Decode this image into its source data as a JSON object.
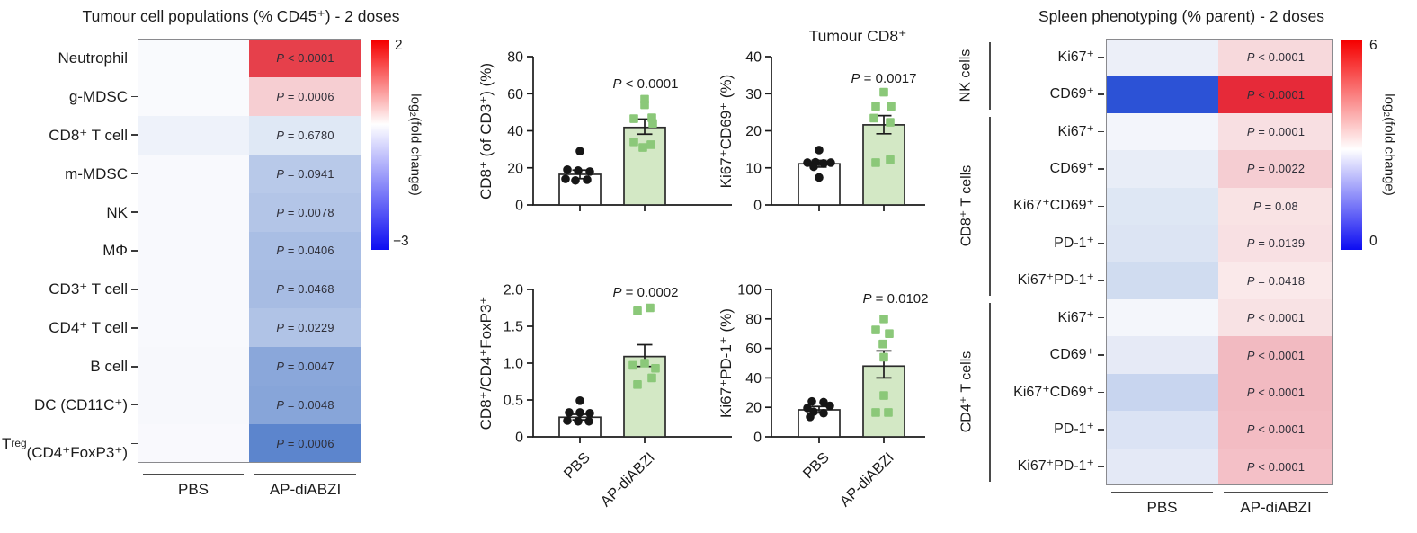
{
  "colors": {
    "bar_pbs_fill": "#ffffff",
    "bar_ap_fill": "#d3e8c5",
    "point_pbs": "#161616",
    "point_ap": "#8bc879",
    "axis": "#1a1a1a",
    "colorbar_red": "#f50000",
    "colorbar_blue": "#0d0df2"
  },
  "chart_data": [
    {
      "type": "heatmap",
      "id": "tumour",
      "title": "Tumour cell populations (% CD45⁺) - 2 doses",
      "columns": [
        "PBS",
        "AP-diABZI"
      ],
      "colorbar": {
        "top": "2",
        "bottom": "−3",
        "label": "log₂(fold change)"
      },
      "rows": [
        {
          "label": "Neutrophil",
          "p": "P < 0.0001",
          "pbs": "#f9fafd",
          "ap": "#e6404b"
        },
        {
          "label": "g-MDSC",
          "p": "P = 0.0006",
          "pbs": "#f9fafd",
          "ap": "#f6ced2"
        },
        {
          "label": "CD8⁺ T cell",
          "p": "P = 0.6780",
          "pbs": "#eef2fa",
          "ap": "#dfe8f5"
        },
        {
          "label": "m-MDSC",
          "p": "P = 0.0941",
          "pbs": "#f8f9fd",
          "ap": "#b8c9e9"
        },
        {
          "label": "NK",
          "p": "P = 0.0078",
          "pbs": "#f8f9fd",
          "ap": "#b3c5e7"
        },
        {
          "label": "MΦ",
          "p": "P = 0.0406",
          "pbs": "#f8f9fd",
          "ap": "#a9bee4"
        },
        {
          "label": "CD3⁺ T cell",
          "p": "P = 0.0468",
          "pbs": "#f8f9fd",
          "ap": "#a7bce3"
        },
        {
          "label": "CD4⁺ T cell",
          "p": "P = 0.0229",
          "pbs": "#f8f9fd",
          "ap": "#b0c3e6"
        },
        {
          "label": "B cell",
          "p": "P = 0.0047",
          "pbs": "#f7f8fc",
          "ap": "#8aa7da"
        },
        {
          "label": "DC (CD11C⁺)",
          "p": "P = 0.0048",
          "pbs": "#f7f8fc",
          "ap": "#87a5d9"
        },
        {
          "label": "T{sub:reg}\n(CD4⁺FoxP3⁺)",
          "p": "P = 0.0006",
          "pbs": "#f9f9fd",
          "ap": "#5c85cd"
        }
      ]
    },
    {
      "type": "bar",
      "ylabel": "CD8⁺ (of CD3⁺) (%)",
      "title": "",
      "p_label": "P < 0.0001",
      "ylim": [
        0,
        80
      ],
      "yticks": [
        [
          0,
          "0"
        ],
        [
          20,
          "20"
        ],
        [
          40,
          "40"
        ],
        [
          60,
          "60"
        ],
        [
          80,
          "80"
        ]
      ],
      "categories": [
        "PBS",
        "AP-diABZI"
      ],
      "show_x_labels": false,
      "series": [
        {
          "name": "PBS",
          "mean": 16.5,
          "sem": [
            14.2,
            18.8
          ],
          "points": [
            [
              0,
              29
            ],
            [
              -14,
              19
            ],
            [
              -2,
              18.5
            ],
            [
              11,
              18
            ],
            [
              -16,
              14
            ],
            [
              -5,
              13.2
            ],
            [
              8,
              13.6
            ]
          ]
        },
        {
          "name": "AP-diABZI",
          "mean": 41.8,
          "sem": [
            38.2,
            46.3
          ],
          "points": [
            [
              0,
              57
            ],
            [
              0,
              54
            ],
            [
              -12,
              46.5
            ],
            [
              8,
              47
            ],
            [
              9,
              44
            ],
            [
              -12,
              34
            ],
            [
              -2,
              31
            ],
            [
              7,
              32.5
            ]
          ]
        }
      ]
    },
    {
      "type": "bar",
      "ylabel": "Ki67⁺CD69⁺ (%)",
      "title": "Tumour CD8⁺",
      "p_label": "P = 0.0017",
      "ylim": [
        0,
        40
      ],
      "yticks": [
        [
          0,
          "0"
        ],
        [
          10,
          "10"
        ],
        [
          20,
          "20"
        ],
        [
          30,
          "30"
        ],
        [
          40,
          "40"
        ]
      ],
      "categories": [
        "PBS",
        "AP-diABZI"
      ],
      "show_x_labels": false,
      "series": [
        {
          "name": "PBS",
          "mean": 11.1,
          "sem": [
            10.2,
            12.0
          ],
          "points": [
            [
              0,
              14.8
            ],
            [
              -13,
              11.4
            ],
            [
              -4,
              11.5
            ],
            [
              5,
              11.2
            ],
            [
              13,
              11.4
            ],
            [
              -6,
              10.3
            ],
            [
              0,
              7.4
            ]
          ]
        },
        {
          "name": "AP-diABZI",
          "mean": 21.6,
          "sem": [
            19.2,
            24.1
          ],
          "points": [
            [
              0,
              30.4
            ],
            [
              -9,
              26.6
            ],
            [
              8,
              26.6
            ],
            [
              -11,
              23.4
            ],
            [
              7,
              22.3
            ],
            [
              -9,
              11.4
            ],
            [
              7,
              12.2
            ]
          ]
        }
      ]
    },
    {
      "type": "bar",
      "ylabel": "CD8⁺/CD4⁺FoxP3⁺",
      "title": "",
      "p_label": "P = 0.0002",
      "ylim": [
        0,
        2
      ],
      "yticks": [
        [
          0,
          "0"
        ],
        [
          0.5,
          "0.5"
        ],
        [
          1,
          "1.0"
        ],
        [
          1.5,
          "1.5"
        ],
        [
          2,
          "2.0"
        ]
      ],
      "categories": [
        "PBS",
        "AP-diABZI"
      ],
      "show_x_labels": true,
      "series": [
        {
          "name": "PBS",
          "mean": 0.265,
          "sem": [
            0.23,
            0.305
          ],
          "points": [
            [
              0,
              0.49
            ],
            [
              -12,
              0.33
            ],
            [
              0,
              0.33
            ],
            [
              11,
              0.32
            ],
            [
              -14,
              0.22
            ],
            [
              -2,
              0.21
            ],
            [
              10,
              0.21
            ]
          ]
        },
        {
          "name": "AP-diABZI",
          "mean": 1.09,
          "sem": [
            0.955,
            1.25
          ],
          "points": [
            [
              -8,
              1.71
            ],
            [
              6,
              1.75
            ],
            [
              -13,
              0.97
            ],
            [
              0,
              1.0
            ],
            [
              12,
              0.93
            ],
            [
              8,
              0.8
            ],
            [
              -8,
              0.71
            ]
          ]
        }
      ]
    },
    {
      "type": "bar",
      "ylabel": "Ki67⁺PD-1⁺ (%)",
      "title": "",
      "p_label": "P = 0.0102",
      "ylim": [
        0,
        100
      ],
      "yticks": [
        [
          0,
          "0"
        ],
        [
          20,
          "20"
        ],
        [
          40,
          "40"
        ],
        [
          60,
          "60"
        ],
        [
          80,
          "80"
        ],
        [
          100,
          "100"
        ]
      ],
      "categories": [
        "PBS",
        "AP-diABZI"
      ],
      "show_x_labels": true,
      "series": [
        {
          "name": "PBS",
          "mean": 18.3,
          "sem": [
            16.2,
            20.6
          ],
          "points": [
            [
              -8,
              24
            ],
            [
              5,
              23.5
            ],
            [
              12,
              21
            ],
            [
              -13,
              19.5
            ],
            [
              -6,
              17
            ],
            [
              5,
              16
            ],
            [
              -10,
              13.5
            ]
          ]
        },
        {
          "name": "AP-diABZI",
          "mean": 48,
          "sem": [
            40,
            58.3
          ],
          "points": [
            [
              0,
              80
            ],
            [
              -9,
              72.5
            ],
            [
              6,
              70
            ],
            [
              -1,
              63
            ],
            [
              0,
              54
            ],
            [
              0,
              28
            ],
            [
              -9,
              16.5
            ],
            [
              5,
              16.5
            ]
          ]
        }
      ]
    },
    {
      "type": "heatmap",
      "id": "spleen",
      "title": "Spleen phenotyping (% parent) - 2 doses",
      "columns": [
        "PBS",
        "AP-diABZI"
      ],
      "colorbar": {
        "top": "6",
        "bottom": "0",
        "label": "log₂(fold change)"
      },
      "groups": [
        {
          "label": "NK cells",
          "rows": [
            0,
            1
          ]
        },
        {
          "label": "CD8⁺ T cells",
          "rows": [
            2,
            6
          ]
        },
        {
          "label": "CD4⁺ T cells",
          "rows": [
            7,
            11
          ]
        }
      ],
      "rows": [
        {
          "label": "Ki67⁺",
          "p": "P < 0.0001",
          "pbs": "#eceff8",
          "ap": "#f7d9dc"
        },
        {
          "label": "CD69⁺",
          "p": "P < 0.0001",
          "pbs": "#2c52d6",
          "ap": "#e62a39"
        },
        {
          "label": "Ki67⁺",
          "p": "P = 0.0001",
          "pbs": "#f3f5fb",
          "ap": "#f8dfe2"
        },
        {
          "label": "CD69⁺",
          "p": "P = 0.0022",
          "pbs": "#e8edf7",
          "ap": "#f5cdd2"
        },
        {
          "label": "Ki67⁺CD69⁺",
          "p": "P = 0.08",
          "pbs": "#dee7f4",
          "ap": "#f9e3e4"
        },
        {
          "label": "PD-1⁺",
          "p": "P = 0.0139",
          "pbs": "#dce4f3",
          "ap": "#f8e0e3"
        },
        {
          "label": "Ki67⁺PD-1⁺",
          "p": "P = 0.0418",
          "pbs": "#d0dcf0",
          "ap": "#fae9ea"
        },
        {
          "label": "Ki67⁺",
          "p": "P < 0.0001",
          "pbs": "#f4f6fb",
          "ap": "#f8e2e4"
        },
        {
          "label": "CD69⁺",
          "p": "P < 0.0001",
          "pbs": "#e6eaf6",
          "ap": "#f2bac1"
        },
        {
          "label": "Ki67⁺CD69⁺",
          "p": "P < 0.0001",
          "pbs": "#c8d5ef",
          "ap": "#f2bac1"
        },
        {
          "label": "PD-1⁺",
          "p": "P < 0.0001",
          "pbs": "#dbe3f4",
          "ap": "#f3bcc3"
        },
        {
          "label": "Ki67⁺PD-1⁺",
          "p": "P < 0.0001",
          "pbs": "#e4e9f6",
          "ap": "#f4c0c7"
        }
      ]
    }
  ]
}
